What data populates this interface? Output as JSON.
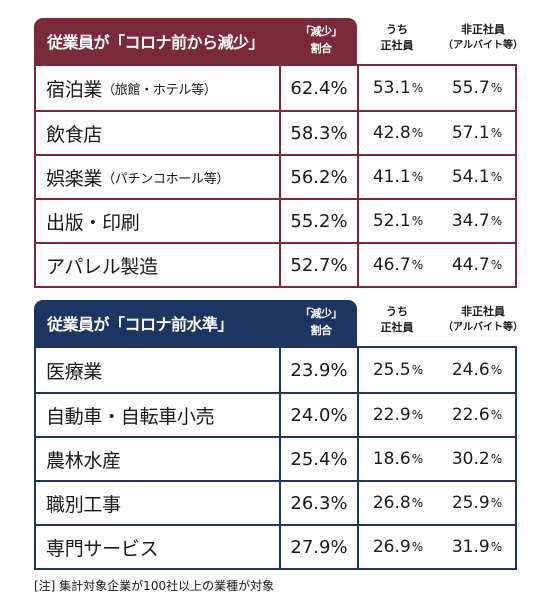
{
  "decrease": {
    "title": "従業員が「コロナ前から減少」",
    "rate_header": [
      "「減少」",
      "割合"
    ],
    "col_a_header": [
      "うち",
      "正社員"
    ],
    "col_b_header": [
      "非正社員",
      "（アルバイト等）"
    ],
    "colors": {
      "accent": "#7b2a3b"
    },
    "rows": [
      {
        "name": "宿泊業",
        "note": "（旅館・ホテル等）",
        "rate": "62.4%",
        "a": "53.1",
        "b": "55.7"
      },
      {
        "name": "飲食店",
        "note": "",
        "rate": "58.3%",
        "a": "42.8",
        "b": "57.1"
      },
      {
        "name": "娯楽業",
        "note": "（パチンコホール等）",
        "rate": "56.2%",
        "a": "41.1",
        "b": "54.1"
      },
      {
        "name": "出版・印刷",
        "note": "",
        "rate": "55.2%",
        "a": "52.1",
        "b": "34.7"
      },
      {
        "name": "アパレル製造",
        "note": "",
        "rate": "52.7%",
        "a": "46.7",
        "b": "44.7"
      }
    ]
  },
  "same": {
    "title": "従業員が「コロナ前水準」",
    "rate_header": [
      "「減少」",
      "割合"
    ],
    "col_a_header": [
      "うち",
      "正社員"
    ],
    "col_b_header": [
      "非正社員",
      "（アルバイト等）"
    ],
    "colors": {
      "accent": "#1d3563"
    },
    "rows": [
      {
        "name": "医療業",
        "note": "",
        "rate": "23.9%",
        "a": "25.5",
        "b": "24.6"
      },
      {
        "name": "自動車・自転車小売",
        "note": "",
        "rate": "24.0%",
        "a": "22.9",
        "b": "22.6"
      },
      {
        "name": "農林水産",
        "note": "",
        "rate": "25.4%",
        "a": "18.6",
        "b": "30.2"
      },
      {
        "name": "職別工事",
        "note": "",
        "rate": "26.3%",
        "a": "26.8",
        "b": "25.9"
      },
      {
        "name": "専門サービス",
        "note": "",
        "rate": "27.9%",
        "a": "26.9",
        "b": "31.9"
      }
    ]
  },
  "pct_sign": "%",
  "footnote": "[注]  集計対象企業が100社以上の業種が対象"
}
